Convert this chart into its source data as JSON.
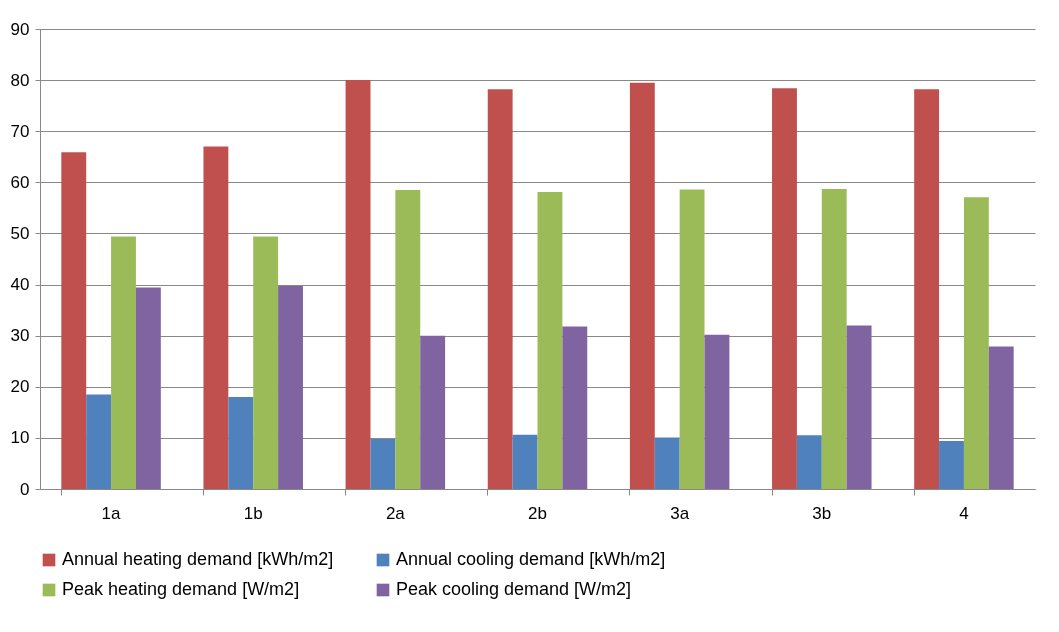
{
  "chart_data": {
    "type": "bar",
    "categories": [
      "1a",
      "1b",
      "2a",
      "2b",
      "3a",
      "3b",
      "4"
    ],
    "series": [
      {
        "name": "Annual heating demand [kWh/m2]",
        "color": "#c0504d",
        "values": [
          65.9,
          67,
          80,
          78.2,
          79.5,
          78.4,
          78.2
        ]
      },
      {
        "name": "Annual cooling demand [kWh/m2]",
        "color": "#4f81bd",
        "values": [
          18.5,
          18,
          9.8,
          10.6,
          10.1,
          10.5,
          9.4
        ]
      },
      {
        "name": "Peak heating demand [W/m2]",
        "color": "#9bbb59",
        "values": [
          49.4,
          49.4,
          58.5,
          58.1,
          58.6,
          58.7,
          57.1
        ]
      },
      {
        "name": "Peak cooling demand [W/m2]",
        "color": "#8064a2",
        "values": [
          39.4,
          39.7,
          30,
          31.8,
          30.2,
          32,
          27.9
        ]
      }
    ],
    "ylim": [
      0,
      90
    ],
    "yticks": [
      0,
      10,
      20,
      30,
      40,
      50,
      60,
      70,
      80,
      90
    ],
    "grid": "y",
    "legend": "bottom"
  }
}
